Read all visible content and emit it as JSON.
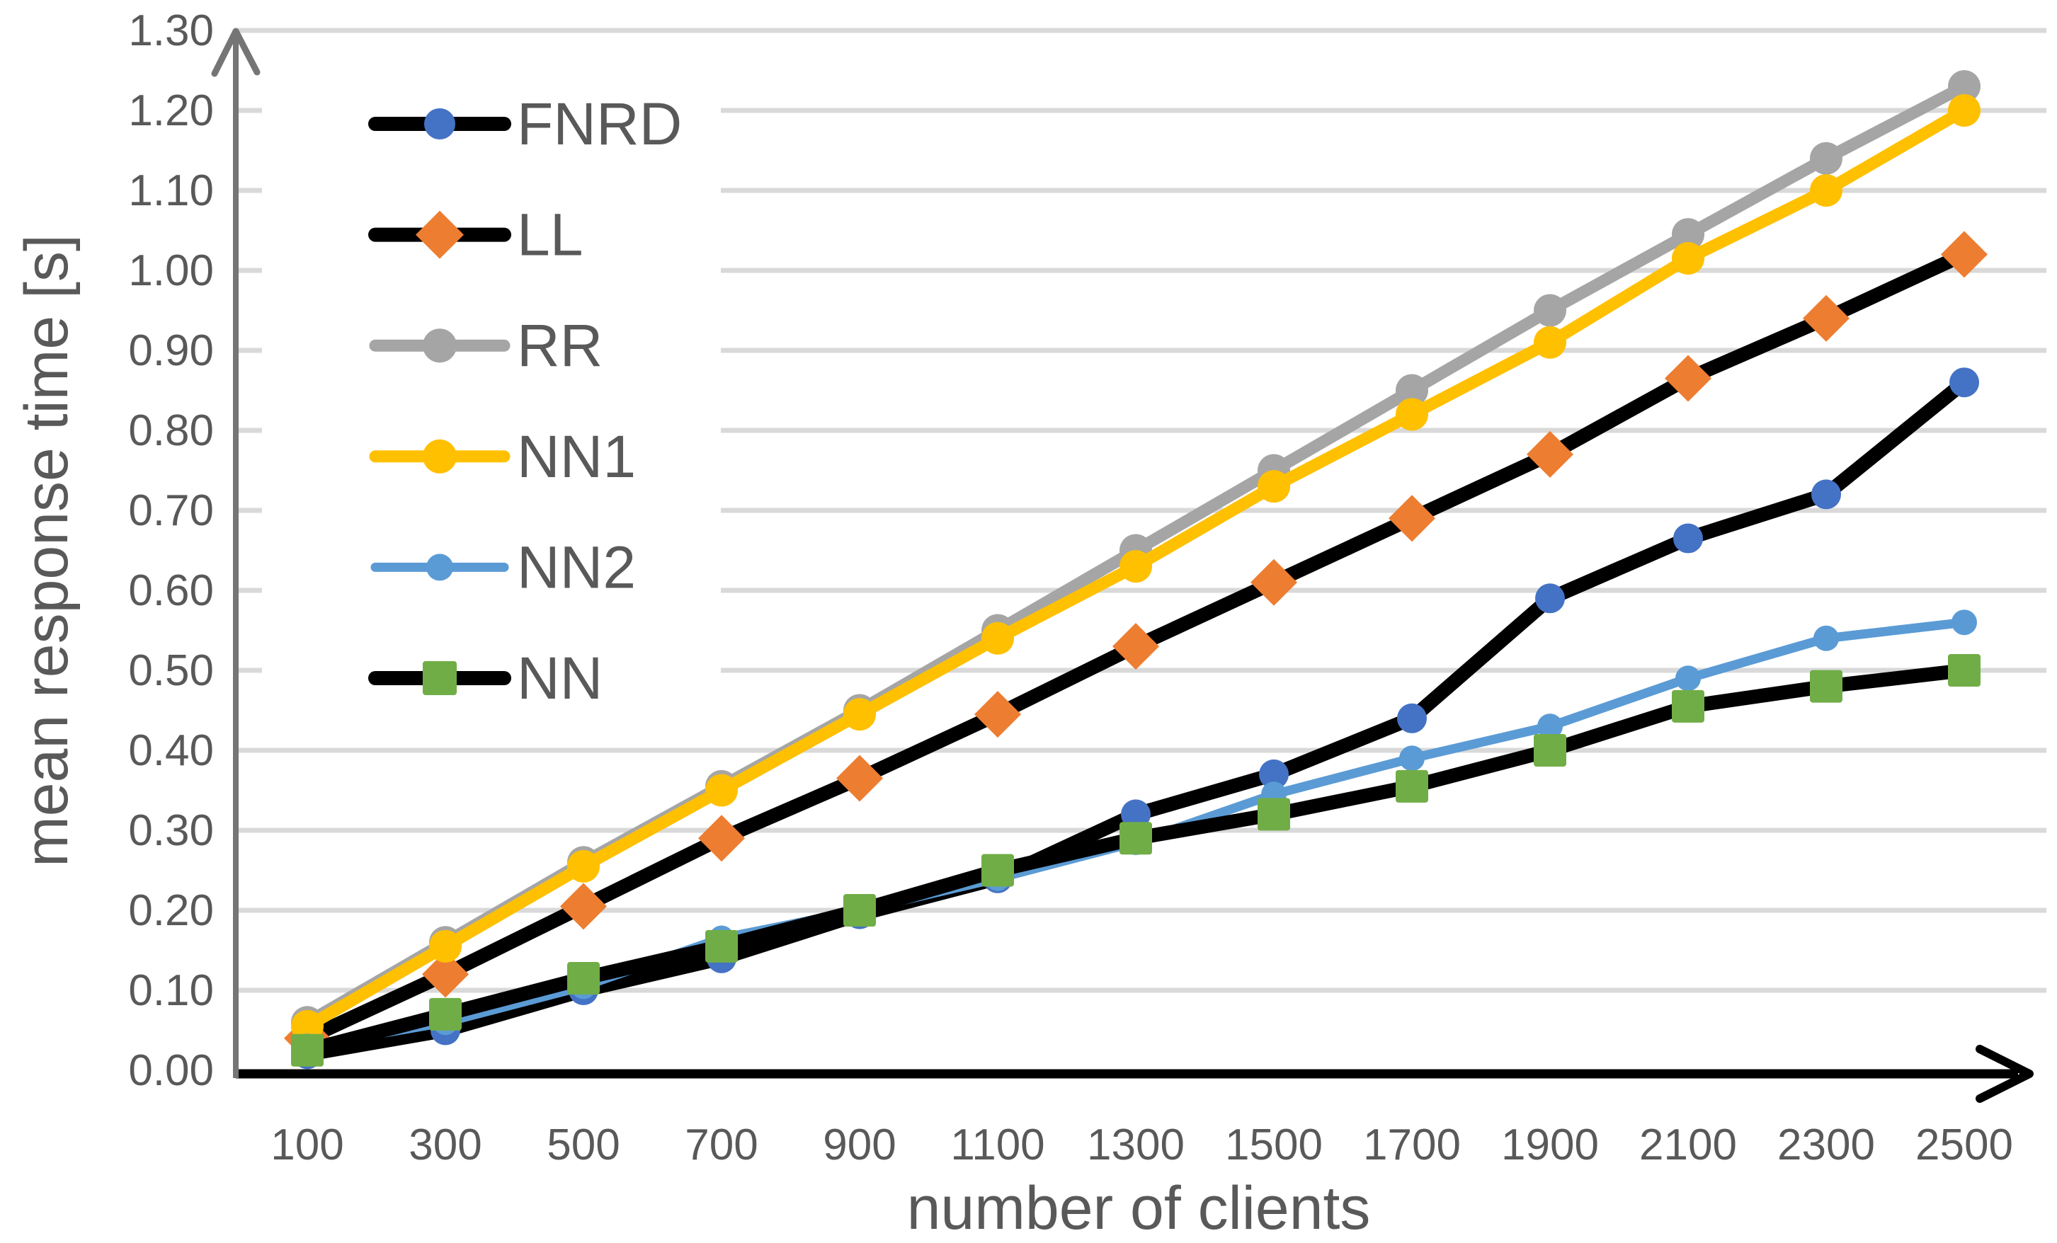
{
  "chart_data": {
    "type": "line",
    "title": "",
    "xlabel": "number of clients",
    "ylabel": "mean response time [s]",
    "x": [
      100,
      300,
      500,
      700,
      900,
      1100,
      1300,
      1500,
      1700,
      1900,
      2100,
      2300,
      2500
    ],
    "xtick_labels": [
      "100",
      "300",
      "500",
      "700",
      "900",
      "1100",
      "1300",
      "1500",
      "1700",
      "1900",
      "2100",
      "2300",
      "2500"
    ],
    "ylim": [
      0.0,
      1.3
    ],
    "ytick_step": 0.1,
    "ytick_labels": [
      "0.00",
      "0.10",
      "0.20",
      "0.30",
      "0.40",
      "0.50",
      "0.60",
      "0.70",
      "0.80",
      "0.90",
      "1.00",
      "1.10",
      "1.20",
      "1.30"
    ],
    "grid": true,
    "axis_arrows": true,
    "legend_position": "top-left",
    "legend_entries": [
      "FNRD",
      "LL",
      "RR",
      "NN1",
      "NN2",
      "NN"
    ],
    "series": [
      {
        "name": "FNRD",
        "line_color": "#000000",
        "marker": "circle",
        "marker_color": "#4472C4",
        "line_width": 20,
        "marker_size": 21,
        "values": [
          0.02,
          0.05,
          0.1,
          0.14,
          0.195,
          0.24,
          0.32,
          0.37,
          0.44,
          0.59,
          0.665,
          0.72,
          0.86
        ]
      },
      {
        "name": "LL",
        "line_color": "#000000",
        "marker": "diamond",
        "marker_color": "#ED7D31",
        "line_width": 20,
        "marker_size": 33,
        "values": [
          0.04,
          0.12,
          0.205,
          0.29,
          0.365,
          0.445,
          0.53,
          0.61,
          0.69,
          0.77,
          0.865,
          0.94,
          1.02
        ]
      },
      {
        "name": "RR",
        "line_color": "#A5A5A5",
        "marker": "circle",
        "marker_color": "#A5A5A5",
        "line_width": 17,
        "marker_size": 23,
        "values": [
          0.06,
          0.16,
          0.26,
          0.355,
          0.45,
          0.55,
          0.65,
          0.75,
          0.85,
          0.95,
          1.045,
          1.14,
          1.23
        ]
      },
      {
        "name": "NN1",
        "line_color": "#FFC000",
        "marker": "circle",
        "marker_color": "#FFC000",
        "line_width": 17,
        "marker_size": 23,
        "values": [
          0.055,
          0.155,
          0.255,
          0.35,
          0.445,
          0.54,
          0.63,
          0.73,
          0.82,
          0.91,
          1.015,
          1.1,
          1.2
        ]
      },
      {
        "name": "NN2",
        "line_color": "#5B9BD5",
        "marker": "circle",
        "marker_color": "#5B9BD5",
        "line_width": 13,
        "marker_size": 18,
        "values": [
          0.03,
          0.06,
          0.105,
          0.165,
          0.2,
          0.24,
          0.285,
          0.345,
          0.39,
          0.43,
          0.49,
          0.54,
          0.56
        ]
      },
      {
        "name": "NN",
        "line_color": "#000000",
        "marker": "square",
        "marker_color": "#70AD47",
        "line_width": 20,
        "marker_size": 23,
        "values": [
          0.025,
          0.07,
          0.115,
          0.155,
          0.2,
          0.25,
          0.29,
          0.32,
          0.355,
          0.4,
          0.455,
          0.48,
          0.5
        ]
      }
    ],
    "colors": {
      "grid": "#D9D9D9",
      "y_axis": "#757575",
      "x_axis": "#000000",
      "text": "#595959",
      "background": "#FFFFFF"
    }
  }
}
